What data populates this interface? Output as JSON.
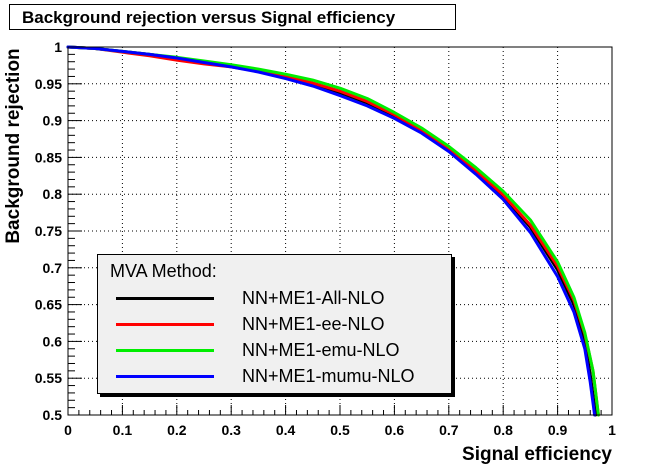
{
  "chart_data": {
    "type": "line",
    "title": "Background rejection versus Signal efficiency",
    "xlabel": "Signal efficiency",
    "ylabel": "Background rejection",
    "xlim": [
      0,
      1
    ],
    "ylim": [
      0.5,
      1
    ],
    "xticks": [
      "0",
      "0.1",
      "0.2",
      "0.3",
      "0.4",
      "0.5",
      "0.6",
      "0.7",
      "0.8",
      "0.9",
      "1"
    ],
    "yticks": [
      "0.5",
      "0.55",
      "0.6",
      "0.65",
      "0.7",
      "0.75",
      "0.8",
      "0.85",
      "0.9",
      "0.95",
      "1"
    ],
    "legend_title": "MVA Method:",
    "legend_position": "bottom-left",
    "series": [
      {
        "name": "NN+ME1-All-NLO",
        "color": "#000000",
        "x": [
          0,
          0.05,
          0.1,
          0.15,
          0.2,
          0.25,
          0.3,
          0.35,
          0.4,
          0.45,
          0.5,
          0.55,
          0.6,
          0.65,
          0.7,
          0.75,
          0.8,
          0.85,
          0.9,
          0.93,
          0.95,
          0.96,
          0.97
        ],
        "y": [
          1.0,
          0.998,
          0.994,
          0.99,
          0.985,
          0.98,
          0.974,
          0.967,
          0.959,
          0.95,
          0.938,
          0.924,
          0.906,
          0.886,
          0.86,
          0.83,
          0.797,
          0.755,
          0.697,
          0.65,
          0.6,
          0.555,
          0.5
        ]
      },
      {
        "name": "NN+ME1-ee-NLO",
        "color": "#ff0000",
        "x": [
          0,
          0.05,
          0.1,
          0.15,
          0.2,
          0.25,
          0.3,
          0.35,
          0.4,
          0.45,
          0.5,
          0.55,
          0.6,
          0.65,
          0.7,
          0.75,
          0.8,
          0.85,
          0.9,
          0.93,
          0.95,
          0.965,
          0.975
        ],
        "y": [
          1.0,
          0.998,
          0.993,
          0.988,
          0.982,
          0.977,
          0.973,
          0.967,
          0.96,
          0.951,
          0.94,
          0.926,
          0.908,
          0.887,
          0.861,
          0.832,
          0.799,
          0.758,
          0.702,
          0.656,
          0.61,
          0.56,
          0.5
        ]
      },
      {
        "name": "NN+ME1-emu-NLO",
        "color": "#00ee00",
        "x": [
          0,
          0.05,
          0.1,
          0.15,
          0.2,
          0.25,
          0.3,
          0.35,
          0.4,
          0.45,
          0.5,
          0.55,
          0.6,
          0.65,
          0.7,
          0.75,
          0.8,
          0.85,
          0.9,
          0.93,
          0.95,
          0.965,
          0.975
        ],
        "y": [
          1.0,
          0.998,
          0.994,
          0.99,
          0.986,
          0.981,
          0.976,
          0.97,
          0.963,
          0.955,
          0.944,
          0.93,
          0.911,
          0.89,
          0.865,
          0.836,
          0.804,
          0.765,
          0.708,
          0.66,
          0.612,
          0.56,
          0.5
        ]
      },
      {
        "name": "NN+ME1-mumu-NLO",
        "color": "#0000ff",
        "x": [
          0,
          0.05,
          0.1,
          0.15,
          0.2,
          0.25,
          0.3,
          0.35,
          0.4,
          0.45,
          0.5,
          0.55,
          0.6,
          0.65,
          0.7,
          0.75,
          0.8,
          0.85,
          0.9,
          0.93,
          0.95,
          0.96,
          0.968
        ],
        "y": [
          1.0,
          0.998,
          0.994,
          0.99,
          0.985,
          0.979,
          0.973,
          0.966,
          0.957,
          0.947,
          0.934,
          0.92,
          0.903,
          0.883,
          0.858,
          0.827,
          0.793,
          0.748,
          0.688,
          0.64,
          0.59,
          0.545,
          0.5
        ]
      }
    ]
  }
}
